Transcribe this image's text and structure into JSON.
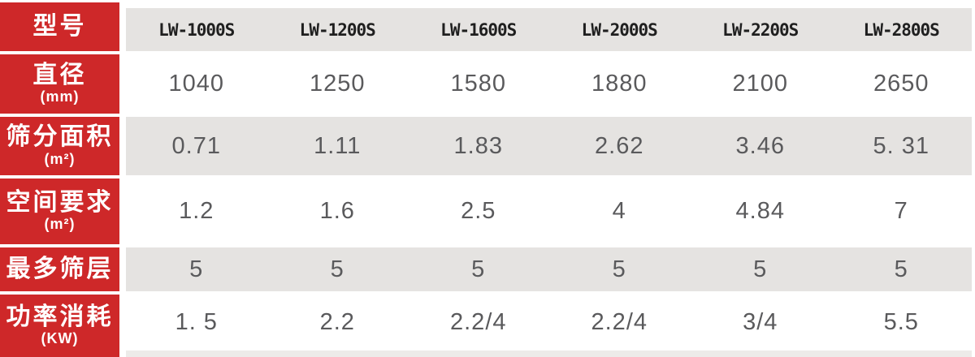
{
  "chart_data": {
    "type": "table",
    "corner_label": "型号",
    "columns": [
      "LW-1000S",
      "LW-1200S",
      "LW-1600S",
      "LW-2000S",
      "LW-2200S",
      "LW-2800S"
    ],
    "rows": [
      {
        "label": "直径",
        "unit": "(mm)",
        "values": [
          "1040",
          "1250",
          "1580",
          "1880",
          "2100",
          "2650"
        ]
      },
      {
        "label": "筛分面积",
        "unit": "(m²)",
        "values": [
          "0.71",
          "1.11",
          "1.83",
          "2.62",
          "3.46",
          "5. 31"
        ]
      },
      {
        "label": "空间要求",
        "unit": "(m²)",
        "values": [
          "1.2",
          "1.6",
          "2.5",
          "4",
          "4.84",
          "7"
        ]
      },
      {
        "label": "最多筛层",
        "unit": "",
        "values": [
          "5",
          "5",
          "5",
          "5",
          "5",
          "5"
        ]
      },
      {
        "label": "功率消耗",
        "unit": "(KW)",
        "values": [
          "1. 5",
          "2.2",
          "2.2/4",
          "2.2/4",
          "3/4",
          "5.5"
        ]
      }
    ]
  },
  "colors": {
    "accent_red": "#ce2829",
    "band_gray": "#e5e3e1",
    "bottom_strip_gray": "#edebe9",
    "value_text": "#5a5a5c",
    "model_text": "#1f1f1f",
    "row_label_text": "#ffffff"
  }
}
